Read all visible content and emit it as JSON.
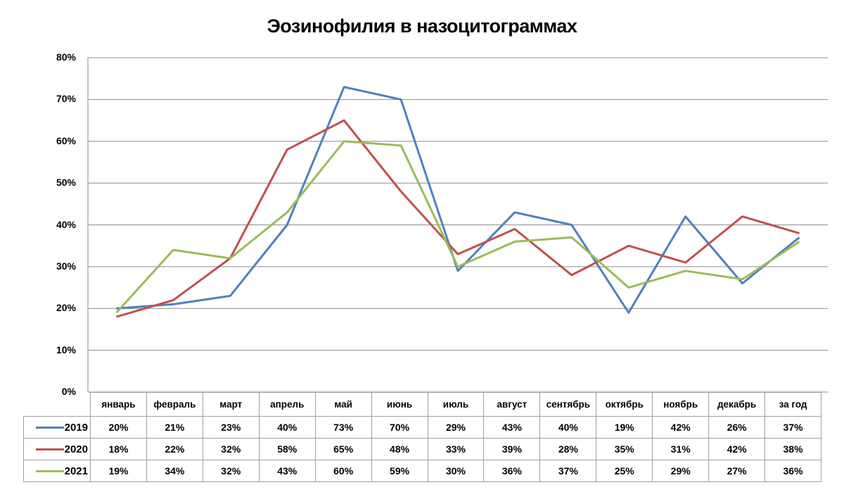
{
  "chart_data": {
    "type": "line",
    "title": "Эозинофилия в назоцитограммах",
    "xlabel": "",
    "ylabel": "",
    "ylim": [
      0,
      0.8
    ],
    "yticks": [
      "0%",
      "10%",
      "20%",
      "30%",
      "40%",
      "50%",
      "60%",
      "70%",
      "80%"
    ],
    "grid": true,
    "legend_position": "data-table",
    "categories": [
      "январь",
      "февраль",
      "март",
      "апрель",
      "май",
      "июнь",
      "июль",
      "август",
      "сентябрь",
      "октябрь",
      "ноябрь",
      "декабрь",
      "за год"
    ],
    "series": [
      {
        "name": "2019",
        "color": "#4f81bd",
        "values": [
          20,
          21,
          23,
          40,
          73,
          70,
          29,
          43,
          40,
          19,
          42,
          26,
          37
        ],
        "labels": [
          "20%",
          "21%",
          "23%",
          "40%",
          "73%",
          "70%",
          "29%",
          "43%",
          "40%",
          "19%",
          "42%",
          "26%",
          "37%"
        ]
      },
      {
        "name": "2020",
        "color": "#c0504d",
        "values": [
          18,
          22,
          32,
          58,
          65,
          48,
          33,
          39,
          28,
          35,
          31,
          42,
          38
        ],
        "labels": [
          "18%",
          "22%",
          "32%",
          "58%",
          "65%",
          "48%",
          "33%",
          "39%",
          "28%",
          "35%",
          "31%",
          "42%",
          "38%"
        ]
      },
      {
        "name": "2021",
        "color": "#9bbb59",
        "values": [
          19,
          34,
          32,
          43,
          60,
          59,
          30,
          36,
          37,
          25,
          29,
          27,
          36
        ],
        "labels": [
          "19%",
          "34%",
          "32%",
          "43%",
          "60%",
          "59%",
          "30%",
          "36%",
          "37%",
          "25%",
          "29%",
          "27%",
          "36%"
        ]
      }
    ]
  }
}
